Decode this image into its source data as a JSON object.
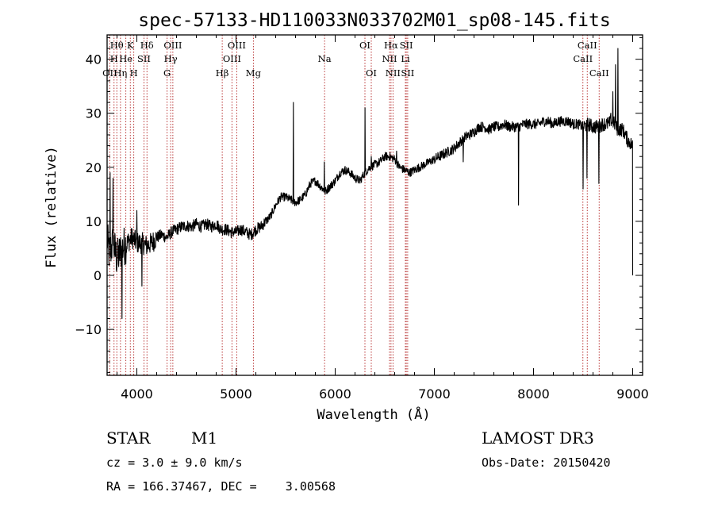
{
  "chart_data": {
    "type": "line",
    "title": "spec-57133-HD110033N033702M01_sp08-145.fits",
    "xlabel": "Wavelength (Å)",
    "ylabel": "Flux (relative)",
    "xlim": [
      3700,
      9100
    ],
    "ylim": [
      -18.5,
      44.5
    ],
    "xticks": [
      4000,
      5000,
      6000,
      7000,
      8000,
      9000
    ],
    "yticks": [
      -10,
      0,
      10,
      20,
      30,
      40
    ],
    "line_color": "#000000",
    "marker_color": "#b22222",
    "spectral_lines": [
      {
        "label": "Hθ",
        "x": 3798,
        "row": 0
      },
      {
        "label": "OII",
        "x": 3727,
        "row": 2
      },
      {
        "label": "H",
        "x": 3770,
        "row": 1
      },
      {
        "label": "Hη",
        "x": 3835,
        "row": 2
      },
      {
        "label": "He",
        "x": 3889,
        "row": 1
      },
      {
        "label": "K",
        "x": 3934,
        "row": 0
      },
      {
        "label": "H",
        "x": 3969,
        "row": 2
      },
      {
        "label": "SII",
        "x": 4072,
        "row": 1
      },
      {
        "label": "Hδ",
        "x": 4102,
        "row": 0
      },
      {
        "label": "OIII",
        "x": 4363,
        "row": 0
      },
      {
        "label": "Hγ",
        "x": 4341,
        "row": 1
      },
      {
        "label": "G",
        "x": 4305,
        "row": 2
      },
      {
        "label": "Hβ",
        "x": 4861,
        "row": 2
      },
      {
        "label": "OIII",
        "x": 5007,
        "row": 0
      },
      {
        "label": "OIII",
        "x": 4959,
        "row": 1
      },
      {
        "label": "Mg",
        "x": 5175,
        "row": 2
      },
      {
        "label": "Na",
        "x": 5893,
        "row": 1
      },
      {
        "label": "OI",
        "x": 6300,
        "row": 0
      },
      {
        "label": "OI",
        "x": 6364,
        "row": 2
      },
      {
        "label": "Hα",
        "x": 6563,
        "row": 0
      },
      {
        "label": "NII",
        "x": 6548,
        "row": 1
      },
      {
        "label": "NII",
        "x": 6583,
        "row": 2
      },
      {
        "label": "SII",
        "x": 6717,
        "row": 0
      },
      {
        "label": "Li",
        "x": 6708,
        "row": 1
      },
      {
        "label": "SII",
        "x": 6731,
        "row": 2
      },
      {
        "label": "CaII",
        "x": 8542,
        "row": 0
      },
      {
        "label": "CaII",
        "x": 8498,
        "row": 1
      },
      {
        "label": "CaII",
        "x": 8662,
        "row": 2
      }
    ],
    "anchors": [
      [
        3700,
        7
      ],
      [
        3720,
        4
      ],
      [
        3760,
        6
      ],
      [
        3800,
        3
      ],
      [
        3850,
        5
      ],
      [
        3900,
        6
      ],
      [
        3950,
        7
      ],
      [
        4000,
        6
      ],
      [
        4050,
        6
      ],
      [
        4100,
        5.5
      ],
      [
        4150,
        6
      ],
      [
        4200,
        7
      ],
      [
        4250,
        7.5
      ],
      [
        4300,
        7
      ],
      [
        4350,
        8
      ],
      [
        4400,
        8.5
      ],
      [
        4450,
        9
      ],
      [
        4500,
        9.2
      ],
      [
        4550,
        9
      ],
      [
        4600,
        9.5
      ],
      [
        4650,
        9
      ],
      [
        4700,
        9.5
      ],
      [
        4750,
        9
      ],
      [
        4800,
        9.5
      ],
      [
        4850,
        8.5
      ],
      [
        4900,
        8.5
      ],
      [
        4950,
        8
      ],
      [
        5000,
        8
      ],
      [
        5050,
        8.5
      ],
      [
        5100,
        8
      ],
      [
        5150,
        7.5
      ],
      [
        5200,
        8.5
      ],
      [
        5250,
        9
      ],
      [
        5300,
        10
      ],
      [
        5350,
        11
      ],
      [
        5400,
        13
      ],
      [
        5450,
        14.5
      ],
      [
        5500,
        14.5
      ],
      [
        5550,
        14
      ],
      [
        5600,
        13.5
      ],
      [
        5650,
        14
      ],
      [
        5700,
        15
      ],
      [
        5750,
        17
      ],
      [
        5800,
        17.5
      ],
      [
        5850,
        16.5
      ],
      [
        5900,
        15.5
      ],
      [
        5950,
        16.5
      ],
      [
        6000,
        17.5
      ],
      [
        6050,
        19
      ],
      [
        6100,
        19.5
      ],
      [
        6150,
        19
      ],
      [
        6200,
        18
      ],
      [
        6250,
        17.5
      ],
      [
        6300,
        19
      ],
      [
        6350,
        20
      ],
      [
        6400,
        20.5
      ],
      [
        6450,
        21
      ],
      [
        6500,
        22
      ],
      [
        6550,
        22
      ],
      [
        6600,
        21.5
      ],
      [
        6650,
        20
      ],
      [
        6700,
        19.5
      ],
      [
        6750,
        19
      ],
      [
        6800,
        19.5
      ],
      [
        6850,
        20
      ],
      [
        6900,
        20.5
      ],
      [
        6950,
        21
      ],
      [
        7000,
        21.5
      ],
      [
        7050,
        22
      ],
      [
        7100,
        22.5
      ],
      [
        7150,
        23
      ],
      [
        7200,
        23.5
      ],
      [
        7250,
        24.5
      ],
      [
        7300,
        25.5
      ],
      [
        7350,
        26
      ],
      [
        7400,
        26.5
      ],
      [
        7450,
        27.5
      ],
      [
        7500,
        27.5
      ],
      [
        7550,
        27
      ],
      [
        7600,
        27.5
      ],
      [
        7650,
        27.5
      ],
      [
        7700,
        28
      ],
      [
        7750,
        27.5
      ],
      [
        7800,
        27.5
      ],
      [
        7850,
        27.5
      ],
      [
        7900,
        28
      ],
      [
        7950,
        28
      ],
      [
        8000,
        28
      ],
      [
        8050,
        28
      ],
      [
        8100,
        28.5
      ],
      [
        8150,
        28.5
      ],
      [
        8200,
        28
      ],
      [
        8250,
        28.5
      ],
      [
        8300,
        28.5
      ],
      [
        8350,
        28.5
      ],
      [
        8400,
        28
      ],
      [
        8450,
        28
      ],
      [
        8500,
        27.5
      ],
      [
        8550,
        28
      ],
      [
        8600,
        27.5
      ],
      [
        8650,
        27.5
      ],
      [
        8700,
        28
      ],
      [
        8750,
        28
      ],
      [
        8800,
        28.5
      ],
      [
        8850,
        27
      ],
      [
        8900,
        27
      ],
      [
        8950,
        25
      ],
      [
        9000,
        24
      ]
    ],
    "spikes": [
      [
        5577,
        32
      ],
      [
        6300,
        31
      ],
      [
        6363,
        22
      ],
      [
        8827,
        39
      ],
      [
        8850,
        42
      ],
      [
        8800,
        34
      ],
      [
        8780,
        30
      ],
      [
        8500,
        16
      ],
      [
        7850,
        13
      ],
      [
        8540,
        18
      ],
      [
        8660,
        17
      ],
      [
        7290,
        21
      ],
      [
        6620,
        23
      ],
      [
        3730,
        19
      ],
      [
        3760,
        18
      ],
      [
        3850,
        -8
      ],
      [
        4000,
        12
      ],
      [
        4050,
        -2
      ],
      [
        5890,
        21
      ]
    ],
    "info": {
      "class_label": "STAR",
      "subclass": "M1",
      "survey": "LAMOST DR3",
      "cz": "cz = 3.0 ± 9.0 km/s",
      "obs_date": "Obs-Date: 20150420",
      "radec": "RA = 166.37467, DEC =    3.00568"
    }
  }
}
